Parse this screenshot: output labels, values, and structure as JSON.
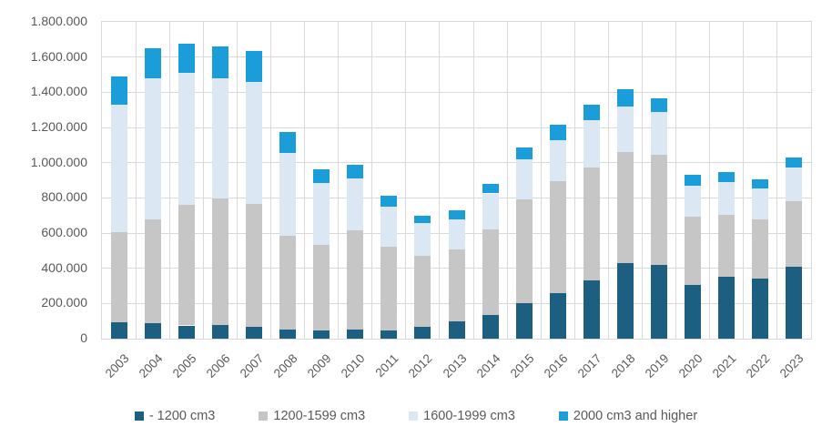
{
  "page": {
    "background": "#ffffff"
  },
  "chart_data": {
    "type": "bar",
    "stacked": true,
    "title": "",
    "xlabel": "",
    "ylabel": "",
    "categories": [
      "2003",
      "2004",
      "2005",
      "2006",
      "2007",
      "2008",
      "2009",
      "2010",
      "2011",
      "2012",
      "2013",
      "2014",
      "2015",
      "2016",
      "2017",
      "2018",
      "2019",
      "2020",
      "2021",
      "2022",
      "2023"
    ],
    "series": [
      {
        "name": "- 1200 cm3",
        "color": "#1D5F80",
        "values": [
          95000,
          90000,
          75000,
          80000,
          65000,
          50000,
          45000,
          50000,
          45000,
          65000,
          100000,
          135000,
          200000,
          260000,
          330000,
          430000,
          420000,
          305000,
          350000,
          340000,
          410000
        ]
      },
      {
        "name": "1200-1599 cm3",
        "color": "#C6C6C6",
        "values": [
          510000,
          590000,
          685000,
          715000,
          700000,
          535000,
          490000,
          565000,
          480000,
          405000,
          405000,
          485000,
          590000,
          635000,
          640000,
          630000,
          625000,
          390000,
          355000,
          340000,
          370000
        ]
      },
      {
        "name": "1600-1999 cm3",
        "color": "#DBE8F4",
        "values": [
          725000,
          800000,
          750000,
          685000,
          695000,
          470000,
          350000,
          295000,
          225000,
          185000,
          175000,
          205000,
          230000,
          235000,
          270000,
          260000,
          245000,
          175000,
          185000,
          175000,
          190000
        ]
      },
      {
        "name": "2000 cm3 and higher",
        "color": "#1B9DD9",
        "values": [
          160000,
          170000,
          165000,
          180000,
          175000,
          120000,
          75000,
          80000,
          60000,
          45000,
          50000,
          55000,
          65000,
          85000,
          90000,
          95000,
          75000,
          60000,
          55000,
          50000,
          60000
        ]
      }
    ],
    "ylim": [
      0,
      1800000
    ],
    "ytick_step": 200000,
    "ytick_labels": [
      "0",
      "200.000",
      "400.000",
      "600.000",
      "800.000",
      "1.000.000",
      "1.200.000",
      "1.400.000",
      "1.600.000",
      "1.800.000"
    ],
    "grid": {
      "horizontal": true,
      "vertical": true,
      "color": "#D9D9D9"
    },
    "legend_position": "bottom",
    "text_color": "#595959"
  }
}
